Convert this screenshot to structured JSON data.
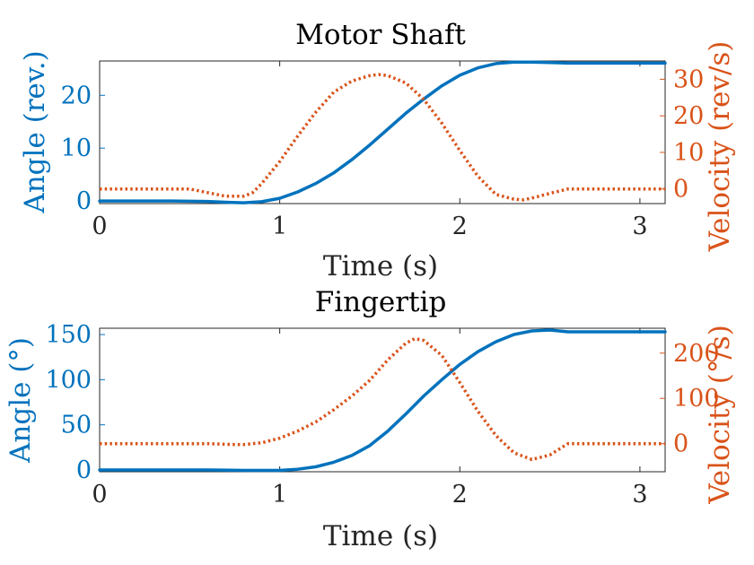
{
  "chart_data": [
    {
      "type": "line",
      "title": "Motor Shaft",
      "xlabel": "Time (s)",
      "ylabel_left": "Angle (rev.)",
      "ylabel_right": "Velocity (rev/s)",
      "xlim": [
        0,
        3.14
      ],
      "ylim_left": [
        -0.5,
        26.5
      ],
      "ylim_right": [
        -4,
        35
      ],
      "xticks": [
        0,
        1,
        2,
        3
      ],
      "yticks_left": [
        0,
        10,
        20
      ],
      "yticks_right": [
        0,
        10,
        20,
        30
      ],
      "colors": {
        "left": "#0072BD",
        "right": "#D95319"
      },
      "series": [
        {
          "axis": "left",
          "style": "solid",
          "x": [
            0,
            0.2,
            0.4,
            0.6,
            0.7,
            0.8,
            0.9,
            1.0,
            1.1,
            1.2,
            1.3,
            1.4,
            1.5,
            1.6,
            1.7,
            1.8,
            1.9,
            2.0,
            2.1,
            2.2,
            2.3,
            2.4,
            2.5,
            2.6,
            2.8,
            3.0,
            3.14
          ],
          "y": [
            0,
            0,
            0,
            -0.1,
            -0.25,
            -0.35,
            -0.15,
            0.5,
            1.7,
            3.3,
            5.3,
            7.8,
            10.6,
            13.6,
            16.6,
            19.3,
            21.8,
            23.8,
            25.2,
            26.0,
            26.3,
            26.3,
            26.2,
            26.1,
            26.1,
            26.1,
            26.1
          ]
        },
        {
          "axis": "right",
          "style": "dotted",
          "x": [
            0,
            0.2,
            0.4,
            0.5,
            0.6,
            0.7,
            0.8,
            0.85,
            0.9,
            1.0,
            1.1,
            1.2,
            1.3,
            1.4,
            1.5,
            1.55,
            1.6,
            1.7,
            1.8,
            1.9,
            2.0,
            2.1,
            2.2,
            2.3,
            2.35,
            2.4,
            2.5,
            2.6,
            2.8,
            3.0,
            3.14
          ],
          "y": [
            0,
            0,
            0,
            0,
            -1,
            -2,
            -2,
            -1,
            1.5,
            7.5,
            14.5,
            21,
            26.5,
            29.5,
            31,
            31.3,
            31,
            29,
            24.5,
            18,
            10.5,
            3.5,
            -1.5,
            -2.8,
            -3,
            -2.5,
            -1.2,
            0,
            0,
            0,
            0
          ]
        }
      ]
    },
    {
      "type": "line",
      "title": "Fingertip",
      "xlabel": "Time (s)",
      "ylabel_left": "Angle (°)",
      "ylabel_right": "Velocity (°/s)",
      "xlim": [
        0,
        3.14
      ],
      "ylim_left": [
        -2,
        157
      ],
      "ylim_right": [
        -62,
        255
      ],
      "xticks": [
        0,
        1,
        2,
        3
      ],
      "yticks_left": [
        0,
        50,
        100,
        150
      ],
      "yticks_right": [
        0,
        100,
        200
      ],
      "colors": {
        "left": "#0072BD",
        "right": "#D95319"
      },
      "series": [
        {
          "axis": "left",
          "style": "solid",
          "x": [
            0,
            0.2,
            0.4,
            0.6,
            0.8,
            1.0,
            1.1,
            1.2,
            1.3,
            1.4,
            1.5,
            1.6,
            1.7,
            1.8,
            1.9,
            2.0,
            2.1,
            2.2,
            2.3,
            2.4,
            2.5,
            2.6,
            2.8,
            3.0,
            3.14
          ],
          "y": [
            0,
            0,
            0,
            0,
            -0.5,
            -0.5,
            0.8,
            3.5,
            8.5,
            16,
            27,
            43,
            62,
            82,
            100,
            117,
            131,
            142,
            150,
            154,
            155,
            153,
            153,
            153,
            153
          ]
        },
        {
          "axis": "right",
          "style": "dotted",
          "x": [
            0,
            0.2,
            0.4,
            0.6,
            0.75,
            0.8,
            0.9,
            1.0,
            1.1,
            1.2,
            1.3,
            1.4,
            1.5,
            1.6,
            1.7,
            1.75,
            1.8,
            1.9,
            2.0,
            2.1,
            2.2,
            2.3,
            2.4,
            2.5,
            2.6,
            2.8,
            3.0,
            3.14
          ],
          "y": [
            0,
            0,
            0,
            0,
            -2,
            -2,
            2,
            12,
            28,
            48,
            75,
            105,
            140,
            185,
            222,
            232,
            228,
            195,
            135,
            72,
            18,
            -20,
            -35,
            -25,
            0,
            0,
            0,
            0
          ]
        }
      ]
    }
  ]
}
